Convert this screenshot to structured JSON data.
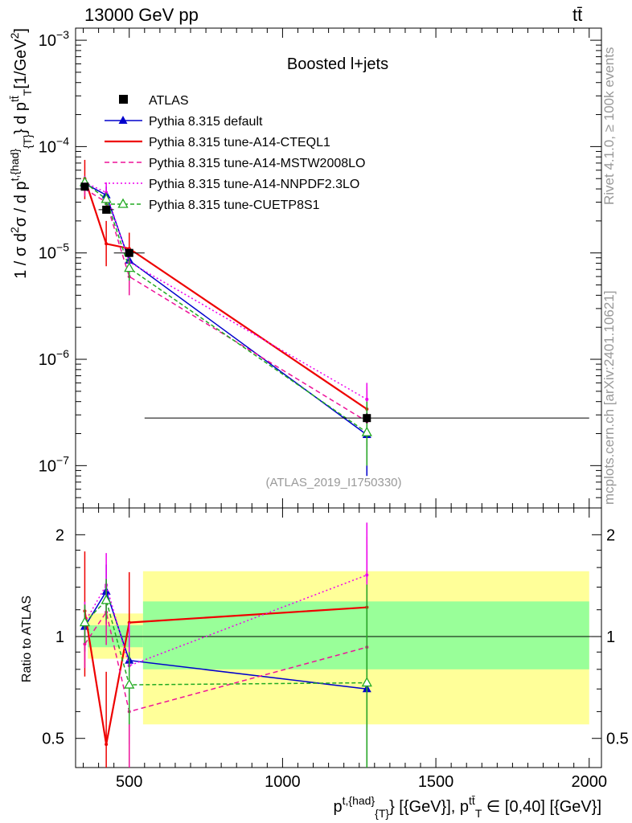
{
  "header": {
    "left": "13000 GeV pp",
    "right": "tt̄"
  },
  "side_labels": {
    "rivet": "Rivet 4.1.0, ≥ 100k events",
    "mcplots": "mcplots.cern.ch [arXiv:2401.10621]"
  },
  "chart_data": [
    {
      "type": "line",
      "title": "Boosted l+jets",
      "watermark": "(ATLAS_2019_I1750330)",
      "xlabel": "p^{t,{had}}_{T} [{GeV}], p_T^{tt̄} ∈ [0,40] [{GeV}]",
      "xlabel_parts": {
        "main": "p",
        "sup1": "t,{had}",
        "sub1": "{T}",
        "mid": "} [{GeV}], p",
        "sup2": "tt̄",
        "sub2": "T",
        "tail": "∈ [0,40] [{GeV}]"
      },
      "ylabel": "1 / σ d²σ / d p^{t,{had}}_{T} d p_T^{tt̄} [1/GeV²]",
      "ylabel_parts": {
        "a": "1 / σ d",
        "b": "2",
        "c": "σ / d p",
        "d": "t,{had}",
        "e": "{T}",
        "f": "} d p",
        "g": "tt̄",
        "h": "T",
        "i": "[1/GeV",
        "j": "2",
        "k": "]"
      },
      "yscale": "log",
      "ylim": [
        4e-08,
        0.0013
      ],
      "xlim": [
        325,
        2040
      ],
      "x_ticks": [
        500,
        1000,
        1500,
        2000
      ],
      "x_tick_labels": [
        "500",
        "1000",
        "1500",
        "2000"
      ],
      "y_tick_labels": [
        {
          "mant": "10",
          "exp": "−7",
          "value": 1e-07
        },
        {
          "mant": "10",
          "exp": "−6",
          "value": 1e-06
        },
        {
          "mant": "10",
          "exp": "−5",
          "value": 1e-05
        },
        {
          "mant": "10",
          "exp": "−4",
          "value": 0.0001
        },
        {
          "mant": "10",
          "exp": "−3",
          "value": 0.001
        }
      ],
      "data": {
        "name": "ATLAS",
        "x": [
          355,
          425,
          500,
          1275
        ],
        "x_err": [
          [
            355,
            355
          ],
          [
            400,
            450
          ],
          [
            450,
            550
          ],
          [
            550,
            2000
          ]
        ],
        "y": [
          4.2e-05,
          2.55e-05,
          1e-05,
          2.8e-07
        ],
        "y_err": [
          [
            3.9e-05,
            4.5e-05
          ],
          [
            2.4e-05,
            2.7e-05
          ],
          [
            9.3e-06,
            1.07e-05
          ],
          [
            2.5e-07,
            3.1e-07
          ]
        ]
      },
      "series": [
        {
          "name": "Pythia 8.315 default",
          "color": "#0000cc",
          "dash": "",
          "marker": "triangle-filled",
          "x": [
            355,
            425,
            500,
            1275
          ],
          "y": [
            4.5e-05,
            3.5e-05,
            8.5e-06,
            1.95e-07
          ],
          "y_err": [
            [
              3.8e-05,
              5.2e-05
            ],
            [
              2.8e-05,
              4.2e-05
            ],
            [
              4.8e-06,
              1.2e-05
            ],
            [
              8e-08,
              5.2e-07
            ]
          ]
        },
        {
          "name": "Pythia 8.315 tune-A14-CTEQL1",
          "color": "#ee0000",
          "dash": "",
          "marker": "",
          "x": [
            355,
            425,
            500,
            1275
          ],
          "y": [
            5e-05,
            1.22e-05,
            1.1e-05,
            3.4e-07
          ],
          "y_err": [
            [
              3.2e-05,
              7.5e-05
            ],
            [
              7.5e-06,
              2e-05
            ],
            [
              7.5e-06,
              1.55e-05
            ],
            [
              1.5e-07,
              5.5e-07
            ]
          ]
        },
        {
          "name": "Pythia 8.315 tune-A14-MSTW2008LO",
          "color": "#ee1199",
          "dash": "6,4",
          "marker": "",
          "x": [
            355,
            425,
            500,
            1275
          ],
          "y": [
            4e-05,
            3e-05,
            6e-06,
            2.6e-07
          ],
          "y_err": [
            [
              3.4e-05,
              4.7e-05
            ],
            [
              2.4e-05,
              3.7e-05
            ],
            [
              4e-06,
              8e-06
            ],
            [
              1e-07,
              5e-07
            ]
          ]
        },
        {
          "name": "Pythia 8.315 tune-A14-NNPDF2.3LO",
          "color": "#ee00ee",
          "dash": "2,3",
          "marker": "",
          "x": [
            355,
            425,
            500,
            1275
          ],
          "y": [
            4.6e-05,
            3.7e-05,
            8.2e-06,
            4.2e-07
          ],
          "y_err": [
            [
              4e-05,
              5.3e-05
            ],
            [
              3e-05,
              4.6e-05
            ],
            [
              5.8e-06,
              1.1e-05
            ],
            [
              2.4e-07,
              6e-07
            ]
          ]
        },
        {
          "name": "Pythia 8.315 tune-CUETP8S1",
          "color": "#22aa22",
          "dash": "5,3",
          "marker": "triangle-open",
          "x": [
            355,
            425,
            500,
            1275
          ],
          "y": [
            4.6e-05,
            3.2e-05,
            7.2e-06,
            2.05e-07
          ],
          "y_err": [
            [
              4e-05,
              5.2e-05
            ],
            [
              2.8e-05,
              3.7e-05
            ],
            [
              5.5e-06,
              9e-06
            ],
            [
              1e-07,
              4e-07
            ]
          ]
        }
      ]
    },
    {
      "type": "line",
      "ylabel": "Ratio to ATLAS",
      "yscale": "log",
      "ylim": [
        0.41,
        2.4
      ],
      "y_ticks": [
        0.5,
        1,
        2
      ],
      "y_tick_labels": [
        "0.5",
        "1",
        "2"
      ],
      "bands": [
        {
          "x": [
            365,
            545
          ],
          "yellow": [
            0.86,
            1.17
          ],
          "green": [
            0.93,
            1.08
          ]
        },
        {
          "x": [
            545,
            2000
          ],
          "yellow": [
            0.55,
            1.56
          ],
          "green": [
            0.8,
            1.27
          ]
        }
      ],
      "series": [
        {
          "name": "Pythia 8.315 default",
          "color": "#0000cc",
          "x": [
            355,
            425,
            500,
            1275
          ],
          "y": [
            1.07,
            1.36,
            0.85,
            0.7
          ]
        },
        {
          "name": "Pythia 8.315 tune-A14-CTEQL1",
          "color": "#ee0000",
          "x": [
            355,
            425,
            500,
            1275
          ],
          "y": [
            1.19,
            0.48,
            1.1,
            1.22
          ]
        },
        {
          "name": "Pythia 8.315 tune-A14-MSTW2008LO",
          "color": "#ee1199",
          "x": [
            355,
            425,
            500,
            1275
          ],
          "y": [
            0.95,
            1.18,
            0.6,
            0.93
          ]
        },
        {
          "name": "Pythia 8.315 tune-A14-NNPDF2.3LO",
          "color": "#ee00ee",
          "x": [
            355,
            425,
            500,
            1275
          ],
          "y": [
            1.1,
            1.42,
            0.82,
            1.52
          ]
        },
        {
          "name": "Pythia 8.315 tune-CUETP8S1",
          "color": "#22aa22",
          "x": [
            355,
            425,
            500,
            1275
          ],
          "y": [
            1.1,
            1.28,
            0.72,
            0.73
          ]
        }
      ]
    }
  ]
}
